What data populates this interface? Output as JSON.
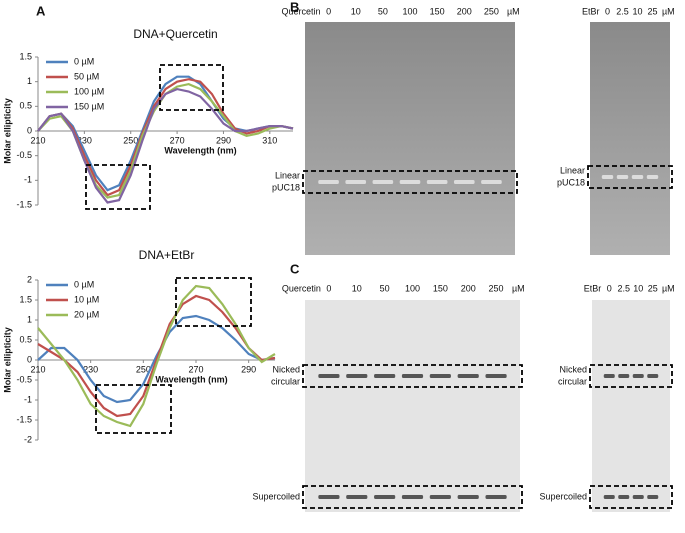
{
  "chart_data": [
    {
      "type": "line",
      "title": "DNA+Quercetin",
      "panel": "A",
      "xlabel": "Wavelength (nm)",
      "ylabel": "Molar ellipticity",
      "x": [
        210,
        215,
        220,
        225,
        230,
        235,
        240,
        245,
        250,
        255,
        260,
        265,
        270,
        275,
        280,
        285,
        290,
        295,
        300,
        305,
        310,
        315,
        320
      ],
      "series": [
        {
          "name": "0 µM",
          "color": "#4f81bd",
          "values": [
            0,
            0.3,
            0.35,
            0.1,
            -0.4,
            -0.9,
            -1.2,
            -1.1,
            -0.6,
            0,
            0.6,
            0.95,
            1.1,
            1.1,
            0.95,
            0.6,
            0.25,
            0.05,
            0,
            0.05,
            0.1,
            0.1,
            0.05
          ]
        },
        {
          "name": "50 µM",
          "color": "#c0504d",
          "values": [
            0,
            0.3,
            0.35,
            0.05,
            -0.5,
            -1.0,
            -1.3,
            -1.2,
            -0.7,
            -0.05,
            0.5,
            0.85,
            1.0,
            1.05,
            1.0,
            0.75,
            0.35,
            0.05,
            -0.05,
            0,
            0.1,
            0.1,
            0.05
          ]
        },
        {
          "name": "100 µM",
          "color": "#9bbb59",
          "values": [
            0,
            0.25,
            0.3,
            0,
            -0.6,
            -1.1,
            -1.35,
            -1.3,
            -0.8,
            -0.1,
            0.4,
            0.75,
            0.9,
            0.95,
            0.85,
            0.6,
            0.3,
            0,
            -0.1,
            -0.05,
            0.05,
            0.1,
            0.05
          ]
        },
        {
          "name": "150 µM",
          "color": "#8064a2",
          "values": [
            0,
            0.3,
            0.35,
            0,
            -0.6,
            -1.15,
            -1.45,
            -1.4,
            -0.9,
            -0.2,
            0.45,
            0.75,
            0.85,
            0.8,
            0.7,
            0.45,
            0.15,
            0,
            0,
            0.05,
            0.1,
            0.1,
            0.05
          ]
        }
      ],
      "xlim": [
        210,
        320
      ],
      "xticks": [
        210,
        230,
        250,
        270,
        290,
        310
      ],
      "ylim": [
        -1.5,
        1.5
      ],
      "yticks": [
        -1.5,
        -1,
        -0.5,
        0,
        0.5,
        1,
        1.5
      ]
    },
    {
      "type": "line",
      "title": "DNA+EtBr",
      "xlabel": "Wavelength (nm)",
      "ylabel": "Molar ellipticity",
      "x": [
        210,
        215,
        220,
        225,
        230,
        235,
        240,
        245,
        250,
        255,
        260,
        265,
        270,
        275,
        280,
        285,
        290,
        295,
        300
      ],
      "series": [
        {
          "name": "0 µM",
          "color": "#4f81bd",
          "values": [
            0,
            0.3,
            0.3,
            0,
            -0.5,
            -0.9,
            -1.05,
            -1.0,
            -0.6,
            0.1,
            0.7,
            1.05,
            1.1,
            1.0,
            0.8,
            0.5,
            0.15,
            0,
            0.05
          ]
        },
        {
          "name": "10 µM",
          "color": "#c0504d",
          "values": [
            0.4,
            0.2,
            0,
            -0.3,
            -0.8,
            -1.2,
            -1.4,
            -1.35,
            -0.9,
            0,
            0.9,
            1.4,
            1.6,
            1.5,
            1.2,
            0.8,
            0.3,
            0,
            0.05
          ]
        },
        {
          "name": "20 µM",
          "color": "#9bbb59",
          "values": [
            0.8,
            0.4,
            0,
            -0.5,
            -1.1,
            -1.4,
            -1.55,
            -1.65,
            -1.1,
            -0.1,
            0.8,
            1.5,
            1.85,
            1.8,
            1.4,
            0.9,
            0.3,
            -0.05,
            0.15
          ]
        }
      ],
      "xlim": [
        210,
        300
      ],
      "xticks": [
        210,
        230,
        250,
        270,
        290
      ],
      "ylim": [
        -2,
        2
      ],
      "yticks": [
        -2,
        -1.5,
        -1,
        -0.5,
        0,
        0.5,
        1,
        1.5,
        2
      ]
    }
  ],
  "gel_panels": [
    {
      "label": "B",
      "gels": [
        {
          "compound": "Quercetin",
          "lanes": [
            "0",
            "10",
            "50",
            "100",
            "150",
            "200",
            "250"
          ],
          "unit": "µM",
          "bands": [
            [
              "Linear",
              "pUC18"
            ]
          ]
        },
        {
          "compound": "EtBr",
          "lanes": [
            "0",
            "2.5",
            "10",
            "25"
          ],
          "unit": "µM",
          "bands": [
            [
              "Linear",
              "pUC18"
            ]
          ]
        }
      ]
    },
    {
      "label": "C",
      "gels": [
        {
          "compound": "Quercetin",
          "lanes": [
            "0",
            "10",
            "50",
            "100",
            "150",
            "200",
            "250"
          ],
          "unit": "µM",
          "bands": [
            [
              "Nicked",
              "circular"
            ],
            [
              "Supercoiled"
            ]
          ]
        },
        {
          "compound": "EtBr",
          "lanes": [
            "0",
            "2.5",
            "10",
            "25"
          ],
          "unit": "µM",
          "bands": [
            [
              "Nicked",
              "circular"
            ],
            [
              "Supercoiled"
            ]
          ]
        }
      ]
    }
  ]
}
